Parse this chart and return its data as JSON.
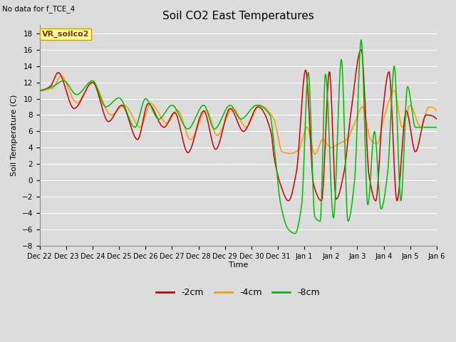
{
  "title": "Soil CO2 East Temperatures",
  "no_data_label": "No data for f_TCE_4",
  "sensor_label": "VR_soilco2",
  "xlabel": "Time",
  "ylabel": "Soil Temperature (C)",
  "ylim": [
    -8,
    19
  ],
  "yticks": [
    -8,
    -6,
    -4,
    -2,
    0,
    2,
    4,
    6,
    8,
    10,
    12,
    14,
    16,
    18
  ],
  "background_color": "#dcdcdc",
  "plot_bg_color": "#dcdcdc",
  "grid_color": "#ffffff",
  "colors": {
    "2cm": "#cc0000",
    "4cm": "#ff9900",
    "8cm": "#00bb00"
  },
  "legend_labels": [
    "-2cm",
    "-4cm",
    "-8cm"
  ],
  "x_tick_labels": [
    "Dec 22",
    "Dec 23",
    "Dec 24",
    "Dec 25",
    "Dec 26",
    "Dec 27",
    "Dec 28",
    "Dec 29",
    "Dec 30",
    "Dec 31",
    "Jan 1",
    "Jan 2",
    "Jan 3",
    "Jan 4",
    "Jan 5",
    "Jan 6"
  ]
}
